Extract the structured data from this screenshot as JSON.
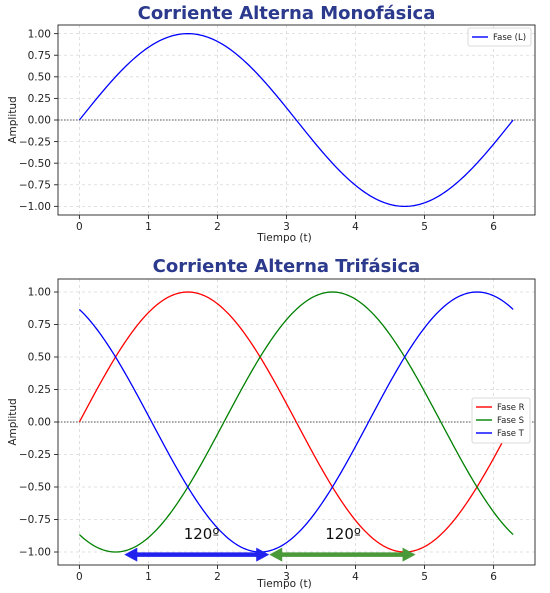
{
  "chart_data": [
    {
      "type": "line",
      "title": "Corriente Alterna Monofásica",
      "xlabel": "Tiempo (t)",
      "ylabel": "Amplitud",
      "xlim": [
        -0.31,
        6.6
      ],
      "ylim": [
        -1.1,
        1.1
      ],
      "xticks": [
        "0",
        "1",
        "2",
        "3",
        "4",
        "5",
        "6"
      ],
      "yticks": [
        "1.00",
        "0.75",
        "0.50",
        "0.25",
        "0.00",
        "−0.25",
        "−0.50",
        "−0.75",
        "−1.00"
      ],
      "grid": true,
      "legend_position": "top-right",
      "zero_line": true,
      "x_range": [
        0,
        6.2832
      ],
      "series": [
        {
          "name": "Fase (L)",
          "color": "#0000ff",
          "function": "sin(x)",
          "phase_deg": 0
        }
      ]
    },
    {
      "type": "line",
      "title": "Corriente Alterna Trifásica",
      "xlabel": "Tiempo (t)",
      "ylabel": "Amplitud",
      "xlim": [
        -0.31,
        6.6
      ],
      "ylim": [
        -1.1,
        1.1
      ],
      "xticks": [
        "0",
        "1",
        "2",
        "3",
        "4",
        "5",
        "6"
      ],
      "yticks": [
        "1.00",
        "0.75",
        "0.50",
        "0.25",
        "0.00",
        "−0.25",
        "−0.50",
        "−0.75",
        "−1.00"
      ],
      "grid": true,
      "legend_position": "center-right",
      "zero_line": true,
      "x_range": [
        0,
        6.2832
      ],
      "series": [
        {
          "name": "Fase R",
          "color": "#ff0000",
          "function": "sin(x)",
          "phase_deg": 0
        },
        {
          "name": "Fase S",
          "color": "#008000",
          "function": "sin(x - 2π/3)",
          "phase_deg": -120
        },
        {
          "name": "Fase T",
          "color": "#0000ff",
          "function": "sin(x + 2π/3)",
          "phase_deg": 120
        }
      ],
      "annotations": [
        {
          "text": "120º",
          "x_start": 0.65,
          "x_end": 2.75,
          "y": -1.02,
          "label_x": 1.77,
          "label_y": -0.9,
          "color": "#2222ee"
        },
        {
          "text": "120º",
          "x_start": 2.75,
          "x_end": 4.87,
          "y": -1.02,
          "label_x": 3.82,
          "label_y": -0.9,
          "color": "#4a9a3a"
        }
      ]
    }
  ]
}
